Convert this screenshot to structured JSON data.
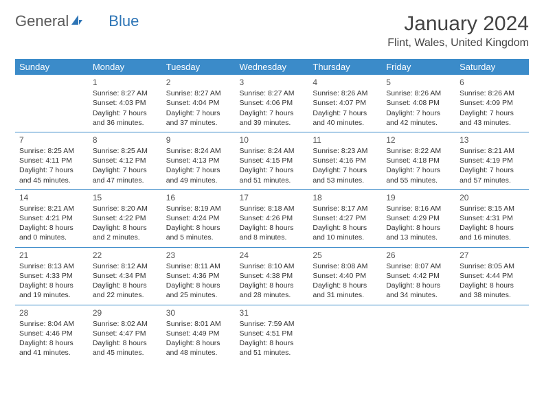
{
  "logo": {
    "text1": "General",
    "text2": "Blue"
  },
  "title": "January 2024",
  "location": "Flint, Wales, United Kingdom",
  "header_bg": "#3b8bc9",
  "header_fg": "#ffffff",
  "divider_color": "#3b8bc9",
  "text_color": "#333333",
  "days": [
    "Sunday",
    "Monday",
    "Tuesday",
    "Wednesday",
    "Thursday",
    "Friday",
    "Saturday"
  ],
  "weeks": [
    [
      null,
      {
        "n": "1",
        "sr": "8:27 AM",
        "ss": "4:03 PM",
        "dl": "7 hours and 36 minutes."
      },
      {
        "n": "2",
        "sr": "8:27 AM",
        "ss": "4:04 PM",
        "dl": "7 hours and 37 minutes."
      },
      {
        "n": "3",
        "sr": "8:27 AM",
        "ss": "4:06 PM",
        "dl": "7 hours and 39 minutes."
      },
      {
        "n": "4",
        "sr": "8:26 AM",
        "ss": "4:07 PM",
        "dl": "7 hours and 40 minutes."
      },
      {
        "n": "5",
        "sr": "8:26 AM",
        "ss": "4:08 PM",
        "dl": "7 hours and 42 minutes."
      },
      {
        "n": "6",
        "sr": "8:26 AM",
        "ss": "4:09 PM",
        "dl": "7 hours and 43 minutes."
      }
    ],
    [
      {
        "n": "7",
        "sr": "8:25 AM",
        "ss": "4:11 PM",
        "dl": "7 hours and 45 minutes."
      },
      {
        "n": "8",
        "sr": "8:25 AM",
        "ss": "4:12 PM",
        "dl": "7 hours and 47 minutes."
      },
      {
        "n": "9",
        "sr": "8:24 AM",
        "ss": "4:13 PM",
        "dl": "7 hours and 49 minutes."
      },
      {
        "n": "10",
        "sr": "8:24 AM",
        "ss": "4:15 PM",
        "dl": "7 hours and 51 minutes."
      },
      {
        "n": "11",
        "sr": "8:23 AM",
        "ss": "4:16 PM",
        "dl": "7 hours and 53 minutes."
      },
      {
        "n": "12",
        "sr": "8:22 AM",
        "ss": "4:18 PM",
        "dl": "7 hours and 55 minutes."
      },
      {
        "n": "13",
        "sr": "8:21 AM",
        "ss": "4:19 PM",
        "dl": "7 hours and 57 minutes."
      }
    ],
    [
      {
        "n": "14",
        "sr": "8:21 AM",
        "ss": "4:21 PM",
        "dl": "8 hours and 0 minutes."
      },
      {
        "n": "15",
        "sr": "8:20 AM",
        "ss": "4:22 PM",
        "dl": "8 hours and 2 minutes."
      },
      {
        "n": "16",
        "sr": "8:19 AM",
        "ss": "4:24 PM",
        "dl": "8 hours and 5 minutes."
      },
      {
        "n": "17",
        "sr": "8:18 AM",
        "ss": "4:26 PM",
        "dl": "8 hours and 8 minutes."
      },
      {
        "n": "18",
        "sr": "8:17 AM",
        "ss": "4:27 PM",
        "dl": "8 hours and 10 minutes."
      },
      {
        "n": "19",
        "sr": "8:16 AM",
        "ss": "4:29 PM",
        "dl": "8 hours and 13 minutes."
      },
      {
        "n": "20",
        "sr": "8:15 AM",
        "ss": "4:31 PM",
        "dl": "8 hours and 16 minutes."
      }
    ],
    [
      {
        "n": "21",
        "sr": "8:13 AM",
        "ss": "4:33 PM",
        "dl": "8 hours and 19 minutes."
      },
      {
        "n": "22",
        "sr": "8:12 AM",
        "ss": "4:34 PM",
        "dl": "8 hours and 22 minutes."
      },
      {
        "n": "23",
        "sr": "8:11 AM",
        "ss": "4:36 PM",
        "dl": "8 hours and 25 minutes."
      },
      {
        "n": "24",
        "sr": "8:10 AM",
        "ss": "4:38 PM",
        "dl": "8 hours and 28 minutes."
      },
      {
        "n": "25",
        "sr": "8:08 AM",
        "ss": "4:40 PM",
        "dl": "8 hours and 31 minutes."
      },
      {
        "n": "26",
        "sr": "8:07 AM",
        "ss": "4:42 PM",
        "dl": "8 hours and 34 minutes."
      },
      {
        "n": "27",
        "sr": "8:05 AM",
        "ss": "4:44 PM",
        "dl": "8 hours and 38 minutes."
      }
    ],
    [
      {
        "n": "28",
        "sr": "8:04 AM",
        "ss": "4:46 PM",
        "dl": "8 hours and 41 minutes."
      },
      {
        "n": "29",
        "sr": "8:02 AM",
        "ss": "4:47 PM",
        "dl": "8 hours and 45 minutes."
      },
      {
        "n": "30",
        "sr": "8:01 AM",
        "ss": "4:49 PM",
        "dl": "8 hours and 48 minutes."
      },
      {
        "n": "31",
        "sr": "7:59 AM",
        "ss": "4:51 PM",
        "dl": "8 hours and 51 minutes."
      },
      null,
      null,
      null
    ]
  ],
  "labels": {
    "sunrise": "Sunrise:",
    "sunset": "Sunset:",
    "daylight": "Daylight:"
  }
}
